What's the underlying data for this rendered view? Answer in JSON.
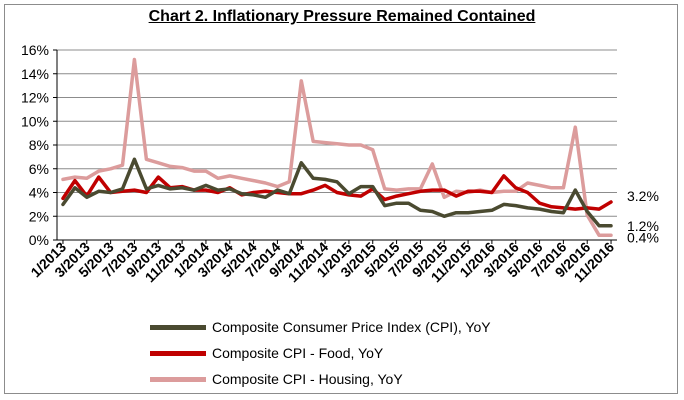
{
  "chart_data": {
    "type": "line",
    "title": "Chart 2. Inflationary Pressure Remained Contained",
    "xlabel": "",
    "ylabel": "",
    "ylim": [
      0,
      16
    ],
    "yticks": [
      "0%",
      "2%",
      "4%",
      "6%",
      "8%",
      "10%",
      "12%",
      "14%",
      "16%"
    ],
    "grid": true,
    "legend_position": "bottom",
    "x": [
      "1/2013",
      "2/2013",
      "3/2013",
      "4/2013",
      "5/2013",
      "6/2013",
      "7/2013",
      "8/2013",
      "9/2013",
      "10/2013",
      "11/2013",
      "12/2013",
      "1/2014",
      "2/2014",
      "3/2014",
      "4/2014",
      "5/2014",
      "6/2014",
      "7/2014",
      "8/2014",
      "9/2014",
      "10/2014",
      "11/2014",
      "12/2014",
      "1/2015",
      "2/2015",
      "3/2015",
      "4/2015",
      "5/2015",
      "6/2015",
      "7/2015",
      "8/2015",
      "9/2015",
      "10/2015",
      "11/2015",
      "12/2015",
      "1/2016",
      "2/2016",
      "3/2016",
      "4/2016",
      "5/2016",
      "6/2016",
      "7/2016",
      "8/2016",
      "9/2016",
      "10/2016",
      "11/2016"
    ],
    "xtick_labels": [
      "1/2013",
      "3/2013",
      "5/2013",
      "7/2013",
      "9/2013",
      "11/2013",
      "1/2014",
      "3/2014",
      "5/2014",
      "7/2014",
      "9/2014",
      "11/2014",
      "1/2015",
      "3/2015",
      "5/2015",
      "7/2015",
      "9/2015",
      "11/2015",
      "1/2016",
      "3/2016",
      "5/2016",
      "7/2016",
      "9/2016",
      "11/2016"
    ],
    "series": [
      {
        "name": "Composite Consumer Price Index (CPI), YoY",
        "color": "#4a4a30",
        "values": [
          3.0,
          4.4,
          3.6,
          4.1,
          4.0,
          4.3,
          6.8,
          4.3,
          4.6,
          4.3,
          4.4,
          4.2,
          4.6,
          4.2,
          4.3,
          3.9,
          3.8,
          3.6,
          4.2,
          3.9,
          6.5,
          5.2,
          5.1,
          4.9,
          3.9,
          4.5,
          4.5,
          2.9,
          3.1,
          3.1,
          2.5,
          2.4,
          2.0,
          2.3,
          2.3,
          2.4,
          2.5,
          3.0,
          2.9,
          2.7,
          2.6,
          2.4,
          2.3,
          4.2,
          2.4,
          1.2,
          1.2
        ],
        "end_label": "1.2%"
      },
      {
        "name": "Composite CPI - Food, YoY",
        "color": "#c00000",
        "values": [
          3.5,
          5.0,
          3.7,
          5.3,
          4.0,
          4.1,
          4.2,
          4.0,
          5.3,
          4.4,
          4.5,
          4.2,
          4.2,
          4.0,
          4.4,
          3.8,
          4.0,
          4.1,
          4.0,
          3.9,
          3.9,
          4.2,
          4.6,
          4.0,
          3.8,
          3.7,
          4.3,
          3.4,
          3.7,
          3.9,
          4.1,
          4.2,
          4.2,
          3.7,
          4.1,
          4.1,
          4.0,
          5.4,
          4.4,
          4.0,
          3.1,
          2.8,
          2.7,
          2.6,
          2.7,
          2.6,
          3.2
        ],
        "end_label": "3.2%"
      },
      {
        "name": "Composite CPI - Housing, YoY",
        "color": "#dc9c9c",
        "values": [
          5.1,
          5.3,
          5.2,
          5.8,
          6.0,
          6.3,
          15.2,
          6.8,
          6.5,
          6.2,
          6.1,
          5.8,
          5.8,
          5.2,
          5.4,
          5.2,
          5.0,
          4.8,
          4.5,
          4.9,
          13.4,
          8.3,
          8.2,
          8.1,
          8.0,
          8.0,
          7.6,
          4.3,
          4.2,
          4.3,
          4.3,
          6.4,
          3.6,
          4.1,
          4.0,
          4.2,
          4.0,
          4.1,
          4.1,
          4.8,
          4.6,
          4.4,
          4.4,
          9.5,
          2.1,
          0.4,
          0.4
        ],
        "end_label": "0.4%"
      }
    ]
  }
}
